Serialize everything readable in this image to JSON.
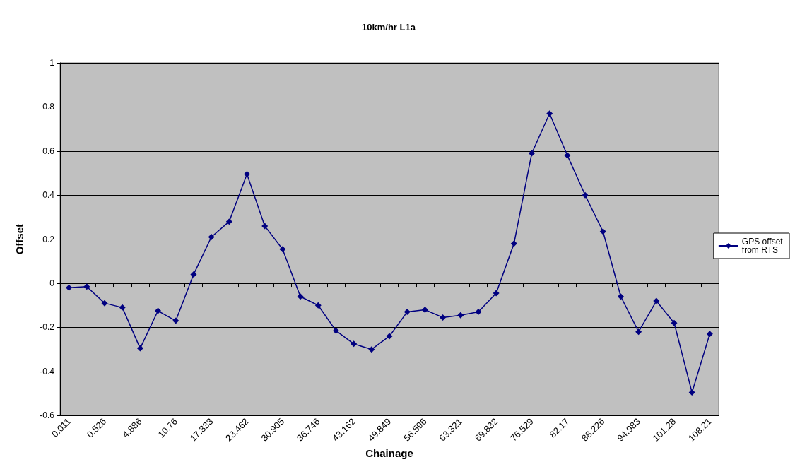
{
  "chart_data": {
    "type": "line",
    "title": "10km/hr L1a",
    "xlabel": "Chainage",
    "ylabel": "Offset",
    "categories": [
      "0.011",
      null,
      "0.526",
      null,
      "4.886",
      null,
      "10.76",
      null,
      "17.333",
      null,
      "23.462",
      null,
      "30.905",
      null,
      "36.746",
      null,
      "43.162",
      null,
      "49.849",
      null,
      "56.596",
      null,
      "63.321",
      null,
      "69.832",
      null,
      "76.529",
      null,
      "82.17",
      null,
      "88.226",
      null,
      "94.983",
      null,
      "101.28",
      null,
      "108.21"
    ],
    "series": [
      {
        "name": "GPS offset from RTS",
        "color": "#000080",
        "values": [
          -0.02,
          -0.015,
          -0.09,
          -0.11,
          -0.295,
          -0.125,
          -0.17,
          0.04,
          0.21,
          0.28,
          0.495,
          0.26,
          0.155,
          -0.06,
          -0.1,
          -0.215,
          -0.275,
          -0.3,
          -0.24,
          -0.13,
          -0.12,
          -0.155,
          -0.145,
          -0.13,
          -0.045,
          0.18,
          0.59,
          0.77,
          0.58,
          0.4,
          0.235,
          -0.06,
          -0.22,
          -0.08,
          -0.18,
          -0.495,
          -0.23
        ]
      }
    ],
    "ylim": [
      -0.6,
      1
    ],
    "yticks": [
      -0.6,
      -0.4,
      -0.2,
      0,
      0.2,
      0.4,
      0.6,
      0.8,
      1
    ],
    "grid": "y",
    "legend": "right",
    "marker": "diamond",
    "line_style": "solid"
  }
}
